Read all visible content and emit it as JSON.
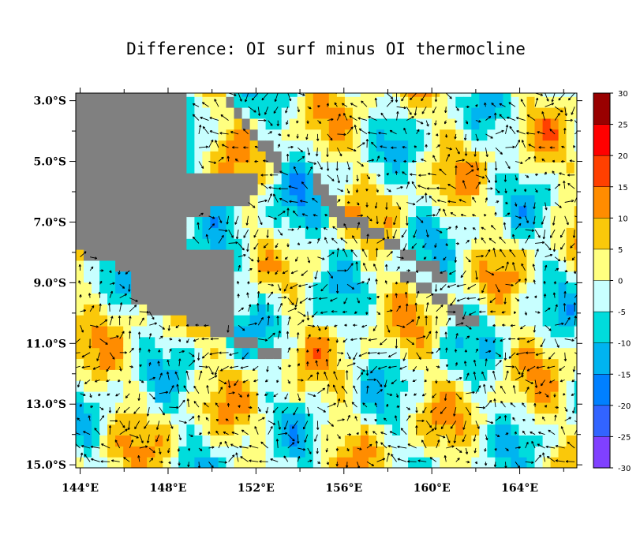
{
  "chart_data": {
    "type": "heatmap",
    "title": "Difference: OI surf minus OI thermocline",
    "xlabel": "",
    "ylabel": "",
    "x_ticks": [
      "144°E",
      "148°E",
      "152°E",
      "156°E",
      "160°E",
      "164°E"
    ],
    "x_tick_values": [
      144,
      148,
      152,
      156,
      160,
      164
    ],
    "y_ticks": [
      "3.0°S",
      "5.0°S",
      "7.0°S",
      "9.0°S",
      "11.0°S",
      "13.0°S",
      "15.0°S"
    ],
    "y_tick_values": [
      -3,
      -5,
      -7,
      -9,
      -11,
      -13,
      -15
    ],
    "xlim": [
      143.8,
      166.6
    ],
    "ylim": [
      -15.1,
      -2.75
    ],
    "overlay": "current difference vectors (arrows)",
    "land_color": "#808080",
    "colorbar": {
      "levels": [
        "30",
        "25",
        "20",
        "15",
        "10",
        "5",
        "0",
        "-5",
        "-10",
        "-15",
        "-20",
        "-25",
        "-30"
      ],
      "colors": [
        "#990000",
        "#ff0000",
        "#ff4000",
        "#ff8c00",
        "#fac80a",
        "#ffff80",
        "#c8ffff",
        "#00dcdc",
        "#00b4f0",
        "#0080ff",
        "#3264ff",
        "#8040ff"
      ]
    }
  }
}
